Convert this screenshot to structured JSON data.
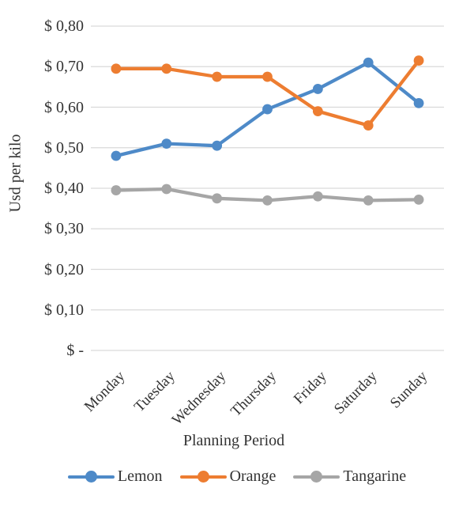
{
  "chart_data": {
    "type": "line",
    "categories": [
      "Monday",
      "Tuesday",
      "Wednesday",
      "Thursday",
      "Friday",
      "Saturday",
      "Sunday"
    ],
    "series": [
      {
        "name": "Lemon",
        "color": "#4E8AC8",
        "values": [
          0.48,
          0.51,
          0.505,
          0.595,
          0.645,
          0.71,
          0.61
        ]
      },
      {
        "name": "Orange",
        "color": "#ED7D31",
        "values": [
          0.695,
          0.695,
          0.675,
          0.675,
          0.59,
          0.555,
          0.715
        ]
      },
      {
        "name": "Tangarine",
        "color": "#A6A6A6",
        "values": [
          0.395,
          0.398,
          0.375,
          0.37,
          0.38,
          0.37,
          0.372
        ]
      }
    ],
    "title": "",
    "xlabel": "Planning Period",
    "ylabel": "Usd per kilo",
    "ylim": [
      0,
      0.8
    ],
    "ytick_step": 0.1,
    "ytick_labels": [
      "$ -",
      "$ 0,10",
      "$ 0,20",
      "$ 0,30",
      "$ 0,40",
      "$ 0,50",
      "$ 0,60",
      "$ 0,70",
      "$ 0,80"
    ],
    "grid": true,
    "legend_position": "bottom"
  },
  "colors": {
    "gridline": "#D9D9D9",
    "text": "#333333",
    "background": "#FFFFFF"
  }
}
